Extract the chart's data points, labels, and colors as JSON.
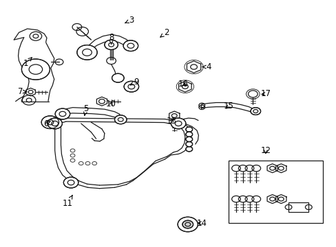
{
  "background_color": "#ffffff",
  "line_color": "#1a1a1a",
  "fig_width": 4.89,
  "fig_height": 3.6,
  "dpi": 100,
  "label_fs": 8.5,
  "lw": 0.9,
  "labels": {
    "1": [
      0.075,
      0.745,
      0.095,
      0.77
    ],
    "2": [
      0.495,
      0.87,
      0.47,
      0.845
    ],
    "3": [
      0.39,
      0.92,
      0.365,
      0.905
    ],
    "4": [
      0.62,
      0.73,
      0.6,
      0.73
    ],
    "5": [
      0.255,
      0.56,
      0.25,
      0.53
    ],
    "6": [
      0.135,
      0.5,
      0.15,
      0.51
    ],
    "7": [
      0.06,
      0.63,
      0.085,
      0.628
    ],
    "8": [
      0.33,
      0.85,
      0.33,
      0.82
    ],
    "9": [
      0.405,
      0.67,
      0.385,
      0.655
    ],
    "10": [
      0.33,
      0.58,
      0.335,
      0.598
    ],
    "11": [
      0.2,
      0.175,
      0.215,
      0.21
    ],
    "12": [
      0.79,
      0.39,
      0.79,
      0.375
    ],
    "13": [
      0.51,
      0.51,
      0.52,
      0.53
    ],
    "14": [
      0.6,
      0.095,
      0.58,
      0.095
    ],
    "15": [
      0.68,
      0.57,
      0.665,
      0.555
    ],
    "16": [
      0.545,
      0.66,
      0.56,
      0.648
    ],
    "17": [
      0.79,
      0.62,
      0.77,
      0.618
    ]
  }
}
